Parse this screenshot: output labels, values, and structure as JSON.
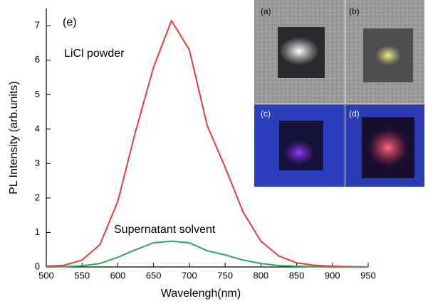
{
  "chart_data": {
    "type": "line",
    "x_label": "Wavelengh(nm)",
    "y_label": "PL Intensity (arb.units)",
    "annotations": [
      "(e)",
      "LiCl powder",
      "Supernatant solvent"
    ],
    "inset_labels": [
      "(a)",
      "(b)",
      "(c)",
      "(d)"
    ],
    "x": [
      500,
      525,
      550,
      575,
      600,
      625,
      650,
      675,
      700,
      725,
      750,
      775,
      800,
      825,
      850,
      875,
      900,
      925,
      950
    ],
    "series": [
      {
        "name": "LiCl powder",
        "color": "#e8393c",
        "values": [
          0.02,
          0.05,
          0.2,
          0.65,
          1.9,
          3.95,
          5.8,
          7.15,
          6.3,
          4.1,
          2.9,
          1.6,
          0.75,
          0.32,
          0.12,
          0.05,
          0.02,
          0.01,
          0
        ]
      },
      {
        "name": "Supernatant solvent",
        "color": "#2ea65a",
        "values": [
          0,
          0.01,
          0.03,
          0.1,
          0.28,
          0.5,
          0.7,
          0.75,
          0.7,
          0.47,
          0.35,
          0.2,
          0.1,
          0.04,
          0.02,
          0.01,
          0,
          0,
          0
        ]
      }
    ],
    "xlim": [
      500,
      950
    ],
    "xticks": [
      500,
      550,
      600,
      650,
      700,
      750,
      800,
      850,
      900,
      950
    ],
    "ylim": [
      0,
      7.5
    ],
    "yticks": [
      0,
      1,
      2,
      3,
      4,
      5,
      6,
      7
    ],
    "grid": false
  }
}
